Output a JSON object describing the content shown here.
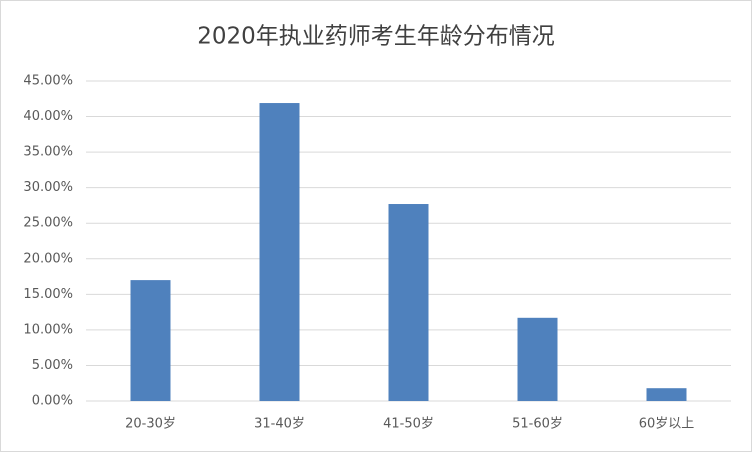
{
  "chart_data": {
    "type": "bar",
    "title": "2020年执业药师考生年龄分布情况",
    "categories": [
      "20-30岁",
      "31-40岁",
      "41-50岁",
      "51-60岁",
      "60岁以上"
    ],
    "values": [
      17.0,
      41.9,
      27.7,
      11.7,
      1.8
    ],
    "color": "#4f81bd",
    "ylim": [
      0,
      45
    ],
    "yticks": [
      {
        "value": 0,
        "label": "0.00%"
      },
      {
        "value": 5,
        "label": "5.00%"
      },
      {
        "value": 10,
        "label": "10.00%"
      },
      {
        "value": 15,
        "label": "15.00%"
      },
      {
        "value": 20,
        "label": "20.00%"
      },
      {
        "value": 25,
        "label": "25.00%"
      },
      {
        "value": 30,
        "label": "30.00%"
      },
      {
        "value": 35,
        "label": "35.00%"
      },
      {
        "value": 40,
        "label": "40.00%"
      },
      {
        "value": 45,
        "label": "45.00%"
      }
    ],
    "grid": true
  }
}
